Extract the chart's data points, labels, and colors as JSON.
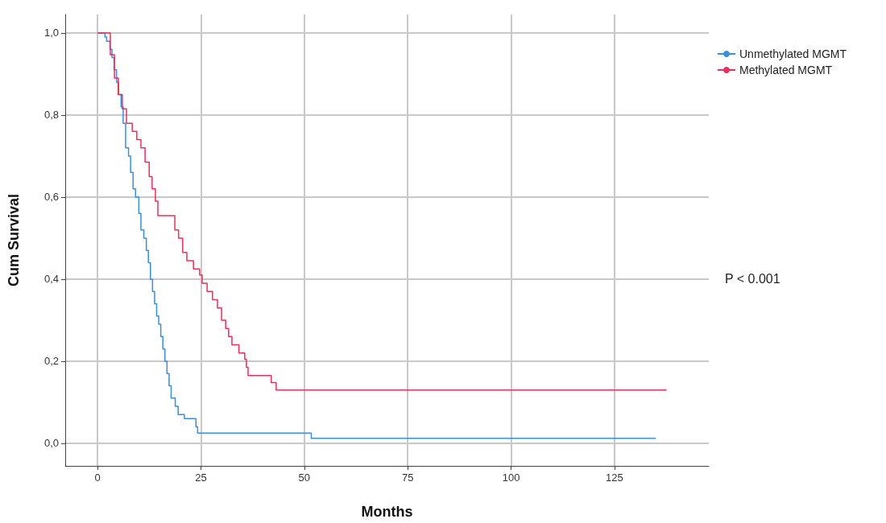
{
  "chart_data": {
    "type": "step",
    "xlabel": "Months",
    "ylabel": "Cum Survival",
    "annotations": [
      "P < 0.001"
    ],
    "xlim": [
      -7.8,
      147.8
    ],
    "xticks": [
      0,
      25,
      50,
      75,
      100,
      125
    ],
    "ylim": [
      -0.055,
      1.045
    ],
    "yticks": [
      {
        "value": 0,
        "label": "0,0"
      },
      {
        "value": 0.2,
        "label": "0,2"
      },
      {
        "value": 0.4,
        "label": "0,4"
      },
      {
        "value": 0.6,
        "label": "0,6"
      },
      {
        "value": 0.8,
        "label": "0,8"
      },
      {
        "value": 1,
        "label": "1,0"
      }
    ],
    "grid": true,
    "legend": "top right",
    "marker": "none",
    "line_style": "solid",
    "series": [
      {
        "name": "Unmethylated MGMT",
        "color": "#3a8fd6",
        "x": [
          0,
          1.8,
          2.2,
          3,
          3.5,
          4,
          4.6,
          5.1,
          5.7,
          6.2,
          6.8,
          7.5,
          8,
          8.6,
          9.2,
          10,
          10.5,
          11.2,
          11.8,
          12.3,
          12.8,
          13.3,
          13.8,
          14.3,
          14.8,
          15.3,
          15.8,
          16.3,
          16.8,
          17.3,
          17.8,
          18.8,
          19.5,
          21,
          23.8,
          24.2,
          51.7,
          135
        ],
        "values": [
          1,
          0.99,
          0.98,
          0.96,
          0.94,
          0.91,
          0.88,
          0.85,
          0.82,
          0.78,
          0.72,
          0.7,
          0.66,
          0.62,
          0.6,
          0.56,
          0.52,
          0.5,
          0.47,
          0.44,
          0.4,
          0.37,
          0.34,
          0.31,
          0.29,
          0.26,
          0.23,
          0.2,
          0.17,
          0.14,
          0.11,
          0.09,
          0.07,
          0.06,
          0.04,
          0.025,
          0.012,
          0.012
        ]
      },
      {
        "name": "Methylated MGMT",
        "color": "#e8305a",
        "x": [
          0,
          3.1,
          4.1,
          5,
          6,
          7,
          8.4,
          9.5,
          10.5,
          11.5,
          12.5,
          13.2,
          14,
          14.6,
          18.7,
          19.6,
          20.6,
          21.6,
          23.2,
          24.7,
          25.3,
          26.5,
          27.8,
          29,
          30,
          31,
          31.7,
          32.5,
          34.2,
          35.6,
          36,
          36.4,
          42,
          43.2,
          137.6
        ],
        "values": [
          1,
          0.947,
          0.89,
          0.85,
          0.815,
          0.78,
          0.76,
          0.74,
          0.72,
          0.685,
          0.65,
          0.62,
          0.59,
          0.555,
          0.52,
          0.5,
          0.465,
          0.445,
          0.425,
          0.41,
          0.39,
          0.37,
          0.35,
          0.33,
          0.3,
          0.28,
          0.26,
          0.24,
          0.22,
          0.205,
          0.185,
          0.165,
          0.148,
          0.13,
          0.13
        ]
      }
    ]
  }
}
